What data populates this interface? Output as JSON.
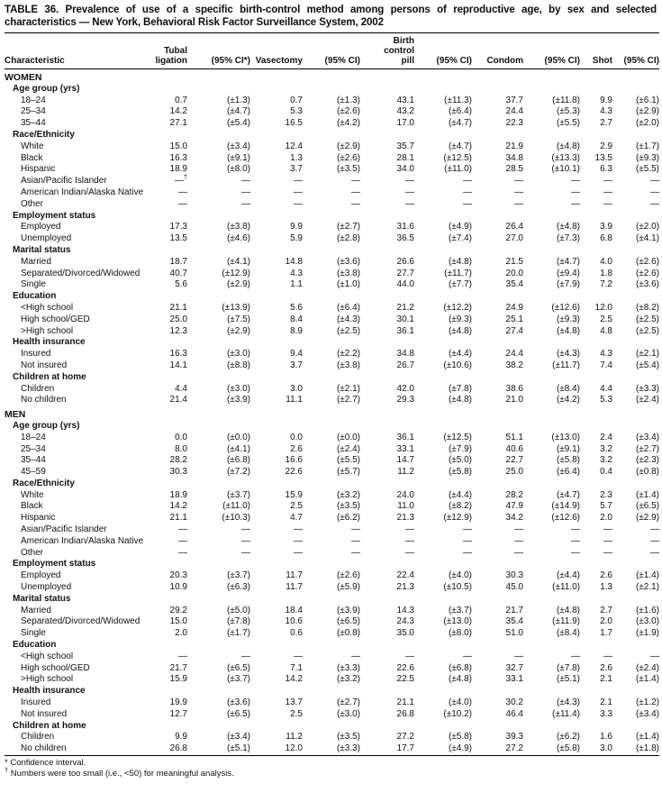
{
  "title": "TABLE 36. Prevalence of use of a specific birth-control method among persons of reproductive age, by sex and selected characteristics — New York, Behavioral Risk Factor Surveillance System, 2002",
  "columns": [
    "Characteristic",
    "Tubal\nligation",
    "(95% CI*)",
    "Vasectomy",
    "(95% CI)",
    "Birth\ncontrol\npill",
    "(95% CI)",
    "Condom",
    "(95% CI)",
    "Shot",
    "(95% CI)"
  ],
  "sections": [
    {
      "name": "WOMEN",
      "groups": [
        {
          "label": "Age group (yrs)",
          "rows": [
            {
              "label": "18–24",
              "values": [
                "0.7",
                "(±1.3)",
                "0.7",
                "(±1.3)",
                "43.1",
                "(±11.3)",
                "37.7",
                "(±11.8)",
                "9.9",
                "(±6.1)"
              ]
            },
            {
              "label": "25–34",
              "values": [
                "14.2",
                "(±4.7)",
                "5.3",
                "(±2.6)",
                "43.2",
                "(±6.4)",
                "24.4",
                "(±5.3)",
                "4.3",
                "(±2.9)"
              ]
            },
            {
              "label": "35–44",
              "values": [
                "27.1",
                "(±5.4)",
                "16.5",
                "(±4.2)",
                "17.0",
                "(±4.7)",
                "22.3",
                "(±5.5)",
                "2.7",
                "(±2.0)"
              ]
            }
          ]
        },
        {
          "label": "Race/Ethnicity",
          "rows": [
            {
              "label": "White",
              "values": [
                "15.0",
                "(±3.4)",
                "12.4",
                "(±2.9)",
                "35.7",
                "(±4.7)",
                "21.9",
                "(±4.8)",
                "2.9",
                "(±1.7)"
              ]
            },
            {
              "label": "Black",
              "values": [
                "16.3",
                "(±9.1)",
                "1.3",
                "(±2.6)",
                "28.1",
                "(±12.5)",
                "34.8",
                "(±13.3)",
                "13.5",
                "(±9.3)"
              ]
            },
            {
              "label": "Hispanic",
              "values": [
                "18.9",
                "(±8.0)",
                "3.7",
                "(±3.5)",
                "34.0",
                "(±11.0)",
                "28.5",
                "(±10.1)",
                "6.3",
                "(±5.5)"
              ]
            },
            {
              "label": "Asian/Pacific Islander",
              "values": [
                "—†",
                "—",
                "—",
                "—",
                "—",
                "—",
                "—",
                "—",
                "—",
                "—"
              ]
            },
            {
              "label": "American Indian/Alaska Native",
              "values": [
                "—",
                "—",
                "—",
                "—",
                "—",
                "—",
                "—",
                "—",
                "—",
                "—"
              ]
            },
            {
              "label": "Other",
              "values": [
                "—",
                "—",
                "—",
                "—",
                "—",
                "—",
                "—",
                "—",
                "—",
                "—"
              ]
            }
          ]
        },
        {
          "label": "Employment status",
          "rows": [
            {
              "label": "Employed",
              "values": [
                "17.3",
                "(±3.8)",
                "9.9",
                "(±2.7)",
                "31.6",
                "(±4.9)",
                "26.4",
                "(±4.8)",
                "3.9",
                "(±2.0)"
              ]
            },
            {
              "label": "Unemployed",
              "values": [
                "13.5",
                "(±4.6)",
                "5.9",
                "(±2.8)",
                "36.5",
                "(±7.4)",
                "27.0",
                "(±7.3)",
                "6.8",
                "(±4.1)"
              ]
            }
          ]
        },
        {
          "label": "Marital status",
          "rows": [
            {
              "label": "Married",
              "values": [
                "18.7",
                "(±4.1)",
                "14.8",
                "(±3.6)",
                "26.6",
                "(±4.8)",
                "21.5",
                "(±4.7)",
                "4.0",
                "(±2.6)"
              ]
            },
            {
              "label": "Separated/Divorced/Widowed",
              "values": [
                "40.7",
                "(±12.9)",
                "4.3",
                "(±3.8)",
                "27.7",
                "(±11.7)",
                "20.0",
                "(±9.4)",
                "1.8",
                "(±2.6)"
              ]
            },
            {
              "label": "Single",
              "values": [
                "5.6",
                "(±2.9)",
                "1.1",
                "(±1.0)",
                "44.0",
                "(±7.7)",
                "35.4",
                "(±7.9)",
                "7.2",
                "(±3.6)"
              ]
            }
          ]
        },
        {
          "label": "Education",
          "rows": [
            {
              "label": "<High school",
              "values": [
                "21.1",
                "(±13.9)",
                "5.6",
                "(±6.4)",
                "21.2",
                "(±12.2)",
                "24.9",
                "(±12.6)",
                "12.0",
                "(±8.2)"
              ]
            },
            {
              "label": "High school/GED",
              "values": [
                "25.0",
                "(±7.5)",
                "8.4",
                "(±4.3)",
                "30.1",
                "(±9.3)",
                "25.1",
                "(±9.3)",
                "2.5",
                "(±2.5)"
              ]
            },
            {
              "label": ">High school",
              "values": [
                "12.3",
                "(±2.9)",
                "8.9",
                "(±2.5)",
                "36.1",
                "(±4.8)",
                "27.4",
                "(±4.8)",
                "4.8",
                "(±2.5)"
              ]
            }
          ]
        },
        {
          "label": "Health insurance",
          "rows": [
            {
              "label": "Insured",
              "values": [
                "16.3",
                "(±3.0)",
                "9.4",
                "(±2.2)",
                "34.8",
                "(±4.4)",
                "24.4",
                "(±4.3)",
                "4.3",
                "(±2.1)"
              ]
            },
            {
              "label": "Not insured",
              "values": [
                "14.1",
                "(±8.8)",
                "3.7",
                "(±3.8)",
                "26.7",
                "(±10.6)",
                "38.2",
                "(±11.7)",
                "7.4",
                "(±5.4)"
              ]
            }
          ]
        },
        {
          "label": "Children at home",
          "rows": [
            {
              "label": "Children",
              "values": [
                "4.4",
                "(±3.0)",
                "3.0",
                "(±2.1)",
                "42.0",
                "(±7.8)",
                "38.6",
                "(±8.4)",
                "4.4",
                "(±3.3)"
              ]
            },
            {
              "label": "No children",
              "values": [
                "21.4",
                "(±3.9)",
                "11.1",
                "(±2.7)",
                "29.3",
                "(±4.8)",
                "21.0",
                "(±4.2)",
                "5.3",
                "(±2.4)"
              ]
            }
          ]
        }
      ]
    },
    {
      "name": "MEN",
      "groups": [
        {
          "label": "Age group (yrs)",
          "rows": [
            {
              "label": "18–24",
              "values": [
                "0.0",
                "(±0.0)",
                "0.0",
                "(±0.0)",
                "36.1",
                "(±12.5)",
                "51.1",
                "(±13.0)",
                "2.4",
                "(±3.4)"
              ]
            },
            {
              "label": "25–34",
              "values": [
                "8.0",
                "(±4.1)",
                "2.6",
                "(±2.4)",
                "33.1",
                "(±7.9)",
                "40.6",
                "(±9.1)",
                "3.2",
                "(±2.7)"
              ]
            },
            {
              "label": "35–44",
              "values": [
                "28.2",
                "(±6.8)",
                "16.6",
                "(±5.5)",
                "14.7",
                "(±5.0)",
                "22.7",
                "(±5.8)",
                "3.2",
                "(±2.3)"
              ]
            },
            {
              "label": "45–59",
              "values": [
                "30.3",
                "(±7.2)",
                "22.6",
                "(±5.7)",
                "11.2",
                "(±5.8)",
                "25.0",
                "(±6.4)",
                "0.4",
                "(±0.8)"
              ]
            }
          ]
        },
        {
          "label": "Race/Ethnicity",
          "rows": [
            {
              "label": "White",
              "values": [
                "18.9",
                "(±3.7)",
                "15.9",
                "(±3.2)",
                "24.0",
                "(±4.4)",
                "28.2",
                "(±4.7)",
                "2.3",
                "(±1.4)"
              ]
            },
            {
              "label": "Black",
              "values": [
                "14.2",
                "(±11.0)",
                "2.5",
                "(±3.5)",
                "11.0",
                "(±8.2)",
                "47.9",
                "(±14.9)",
                "5.7",
                "(±6.5)"
              ]
            },
            {
              "label": "Hispanic",
              "values": [
                "21.1",
                "(±10.3)",
                "4.7",
                "(±6.2)",
                "21.3",
                "(±12.9)",
                "34.2",
                "(±12.6)",
                "2.0",
                "(±2.9)"
              ]
            },
            {
              "label": "Asian/Pacific Islander",
              "values": [
                "—",
                "—",
                "—",
                "—",
                "—",
                "—",
                "—",
                "—",
                "—",
                "—"
              ]
            },
            {
              "label": "American Indian/Alaska Native",
              "values": [
                "—",
                "—",
                "—",
                "—",
                "—",
                "—",
                "—",
                "—",
                "—",
                "—"
              ]
            },
            {
              "label": "Other",
              "values": [
                "—",
                "—",
                "—",
                "—",
                "—",
                "—",
                "—",
                "—",
                "—",
                "—"
              ]
            }
          ]
        },
        {
          "label": "Employment status",
          "rows": [
            {
              "label": "Employed",
              "values": [
                "20.3",
                "(±3.7)",
                "11.7",
                "(±2.6)",
                "22.4",
                "(±4.0)",
                "30.3",
                "(±4.4)",
                "2.6",
                "(±1.4)"
              ]
            },
            {
              "label": "Unemployed",
              "values": [
                "10.9",
                "(±6.3)",
                "11.7",
                "(±5.9)",
                "21.3",
                "(±10.5)",
                "45.0",
                "(±11.0)",
                "1.3",
                "(±2.1)"
              ]
            }
          ]
        },
        {
          "label": "Marital status",
          "rows": [
            {
              "label": "Married",
              "values": [
                "29.2",
                "(±5.0)",
                "18.4",
                "(±3.9)",
                "14.3",
                "(±3.7)",
                "21.7",
                "(±4.8)",
                "2.7",
                "(±1.6)"
              ]
            },
            {
              "label": "Separated/Divorced/Widowed",
              "values": [
                "15.0",
                "(±7.8)",
                "10.6",
                "(±6.5)",
                "24.3",
                "(±13.0)",
                "35.4",
                "(±11.9)",
                "2.0",
                "(±3.0)"
              ]
            },
            {
              "label": "Single",
              "values": [
                "2.0",
                "(±1.7)",
                "0.6",
                "(±0.8)",
                "35.0",
                "(±8.0)",
                "51.0",
                "(±8.4)",
                "1.7",
                "(±1.9)"
              ]
            }
          ]
        },
        {
          "label": "Education",
          "rows": [
            {
              "label": "<High school",
              "values": [
                "—",
                "—",
                "—",
                "—",
                "—",
                "—",
                "—",
                "—",
                "—",
                "—"
              ]
            },
            {
              "label": "High school/GED",
              "values": [
                "21.7",
                "(±6.5)",
                "7.1",
                "(±3.3)",
                "22.6",
                "(±6.8)",
                "32.7",
                "(±7.8)",
                "2.6",
                "(±2.4)"
              ]
            },
            {
              "label": ">High school",
              "values": [
                "15.9",
                "(±3.7)",
                "14.2",
                "(±3.2)",
                "22.5",
                "(±4.8)",
                "33.1",
                "(±5.1)",
                "2.1",
                "(±1.4)"
              ]
            }
          ]
        },
        {
          "label": "Health insurance",
          "rows": [
            {
              "label": "Insured",
              "values": [
                "19.9",
                "(±3.6)",
                "13.7",
                "(±2.7)",
                "21.1",
                "(±4.0)",
                "30.2",
                "(±4.3)",
                "2.1",
                "(±1.2)"
              ]
            },
            {
              "label": "Not insured",
              "values": [
                "12.7",
                "(±6.5)",
                "2.5",
                "(±3.0)",
                "26.8",
                "(±10.2)",
                "46.4",
                "(±11.4)",
                "3.3",
                "(±3.4)"
              ]
            }
          ]
        },
        {
          "label": "Children at home",
          "rows": [
            {
              "label": "Children",
              "values": [
                "9.9",
                "(±3.4)",
                "11.2",
                "(±3.5)",
                "27.2",
                "(±5.8)",
                "39.3",
                "(±6.2)",
                "1.6",
                "(±1.4)"
              ]
            },
            {
              "label": "No children",
              "values": [
                "26.8",
                "(±5.1)",
                "12.0",
                "(±3.3)",
                "17.7",
                "(±4.9)",
                "27.2",
                "(±5.8)",
                "3.0",
                "(±1.8)"
              ]
            }
          ]
        }
      ]
    }
  ],
  "footnotes": [
    {
      "marker": "*",
      "sup": false,
      "text": "Confidence interval."
    },
    {
      "marker": "†",
      "sup": true,
      "text": "Numbers were too small (i.e., <50) for meaningful analysis."
    }
  ],
  "colors": {
    "text": "#111111",
    "rule": "#000000",
    "background": "#ffffff"
  }
}
